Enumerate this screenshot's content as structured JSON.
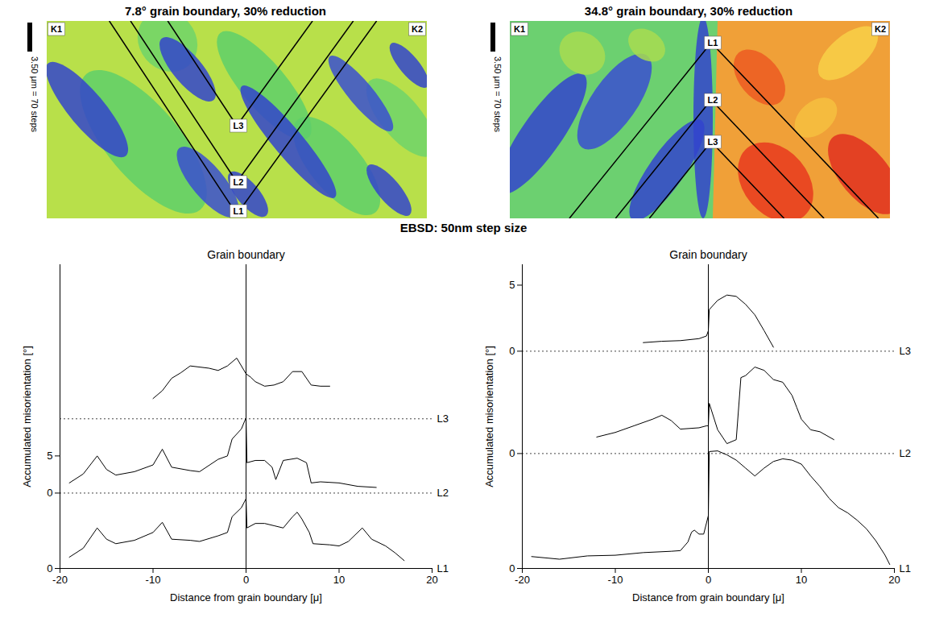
{
  "maps": [
    {
      "title": "7.8° grain boundary, 30% reduction",
      "labels": [
        "K1",
        "K2"
      ],
      "lines": [
        "L1",
        "L2",
        "L3"
      ],
      "scale_bar": "3.50 µm = 70 steps"
    },
    {
      "title": "34.8° grain boundary, 30% reduction",
      "labels": [
        "K1",
        "K2"
      ],
      "lines": [
        "L1",
        "L2",
        "L3"
      ],
      "scale_bar": "3.50 µm = 70 steps"
    }
  ],
  "heading": "EBSD: 50nm step size",
  "chart_data": [
    {
      "type": "line",
      "x_label": "Distance from grain boundary [μ]",
      "y_label": "Accumulated misorientation [°]",
      "annotation": "Grain boundary",
      "boundary_x": 0,
      "xlim": [
        -20,
        20
      ],
      "xticks": [
        -20,
        -10,
        0,
        10,
        20
      ],
      "ylim": [
        0,
        13.5
      ],
      "series": [
        {
          "name": "L1",
          "color": "#000000",
          "baseline": 0,
          "yticks": [
            0,
            5
          ],
          "x": [
            -19,
            -17.5,
            -16,
            -15,
            -14,
            -12,
            -10,
            -9,
            -8,
            -6,
            -5,
            -3,
            -2,
            -1.5,
            -0.5,
            0,
            0.1,
            1,
            2,
            3,
            4,
            5,
            5.5,
            6,
            6.8,
            7.2,
            9,
            10,
            11,
            12.5,
            13.5,
            15,
            16,
            17
          ],
          "values": [
            0.5,
            0.9,
            1.8,
            1.3,
            1.1,
            1.25,
            1.6,
            2.05,
            1.3,
            1.25,
            1.2,
            1.45,
            1.6,
            2.3,
            2.7,
            3.1,
            1.8,
            2.0,
            2.0,
            1.9,
            1.8,
            2.3,
            2.5,
            2.2,
            1.6,
            1.1,
            1.05,
            1.0,
            1.2,
            1.8,
            1.3,
            1.0,
            0.7,
            0.35
          ]
        },
        {
          "name": "L2",
          "color": "#000000",
          "baseline": 3.35,
          "yticks": [
            0
          ],
          "x": [
            -19,
            -17.5,
            -16,
            -15,
            -14,
            -12,
            -10,
            -9,
            -8,
            -6,
            -5,
            -3,
            -2,
            -1.5,
            -0.5,
            0,
            0.1,
            1,
            2,
            2.8,
            3.2,
            4,
            5.5,
            6.5,
            7,
            8,
            10,
            12,
            14
          ],
          "values": [
            0.45,
            0.85,
            1.65,
            1.05,
            0.8,
            0.95,
            1.25,
            1.95,
            1.15,
            1.0,
            0.95,
            1.5,
            1.65,
            2.4,
            2.85,
            3.35,
            1.35,
            1.45,
            1.45,
            1.15,
            0.6,
            1.45,
            1.55,
            1.35,
            0.45,
            0.5,
            0.45,
            0.3,
            0.25
          ]
        },
        {
          "name": "L3",
          "color": "#000000",
          "baseline": 6.65,
          "yticks": [],
          "x": [
            -10,
            -9,
            -8,
            -7,
            -6,
            -4,
            -3,
            -2,
            -1,
            0,
            0.5,
            1,
            2,
            3,
            4,
            5,
            6,
            7,
            8,
            9
          ],
          "values": [
            0.9,
            1.25,
            1.8,
            2.05,
            2.35,
            2.25,
            2.15,
            2.35,
            2.7,
            2.0,
            1.85,
            1.65,
            1.45,
            1.5,
            1.65,
            2.1,
            2.1,
            1.5,
            1.45,
            1.45
          ]
        }
      ]
    },
    {
      "type": "line",
      "x_label": "Distance from grain boundary [μ]",
      "y_label": "Accumulated misorientation [°]",
      "annotation": "Grain boundary",
      "boundary_x": 0,
      "xlim": [
        -20,
        20
      ],
      "xticks": [
        -20,
        -10,
        0,
        10,
        20
      ],
      "ylim": [
        0,
        23
      ],
      "series": [
        {
          "name": "L1",
          "color": "#000000",
          "baseline": 0,
          "yticks": [
            0
          ],
          "x": [
            -19,
            -16,
            -13,
            -10,
            -7,
            -4,
            -3,
            -2.2,
            -1.8,
            -1.5,
            -1,
            -0.5,
            0,
            0.1,
            1,
            2,
            3,
            4,
            5,
            6,
            7,
            8,
            9,
            10,
            11,
            12,
            13,
            14,
            15,
            16,
            17,
            18,
            19,
            19.5
          ],
          "values": [
            0.9,
            0.7,
            0.95,
            1.0,
            1.2,
            1.3,
            1.35,
            2.0,
            2.75,
            2.9,
            2.6,
            2.6,
            4.0,
            8.85,
            8.9,
            8.6,
            8.2,
            7.6,
            7.0,
            7.6,
            8.1,
            8.3,
            8.2,
            7.9,
            7.0,
            6.2,
            5.3,
            4.6,
            4.2,
            3.65,
            3.0,
            2.1,
            1.0,
            0.3
          ]
        },
        {
          "name": "L2",
          "color": "#000000",
          "baseline": 8.7,
          "yticks": [
            0
          ],
          "x": [
            -12,
            -10,
            -8,
            -6,
            -5,
            -4,
            -3,
            -1,
            -0.2,
            0,
            0.1,
            1,
            2,
            3,
            3.5,
            4,
            5,
            6,
            7,
            8,
            9,
            9.5,
            10,
            11,
            12,
            13.5
          ],
          "values": [
            1.25,
            1.6,
            2.1,
            2.6,
            2.9,
            2.5,
            1.85,
            1.95,
            2.1,
            2.1,
            3.8,
            1.8,
            0.75,
            1.05,
            5.75,
            5.9,
            6.55,
            6.3,
            5.6,
            5.4,
            4.4,
            3.5,
            2.6,
            1.8,
            1.65,
            1.05
          ]
        },
        {
          "name": "L3",
          "color": "#000000",
          "baseline": 16.45,
          "yticks": [
            0,
            5
          ],
          "x": [
            -7,
            -5,
            -3,
            -1,
            -0.2,
            0,
            0.1,
            1,
            2,
            3,
            4,
            5,
            6,
            7
          ],
          "values": [
            0.65,
            0.75,
            0.8,
            0.95,
            1.15,
            1.55,
            3.15,
            3.85,
            4.25,
            4.15,
            3.55,
            2.75,
            1.55,
            0.3
          ]
        }
      ]
    }
  ]
}
